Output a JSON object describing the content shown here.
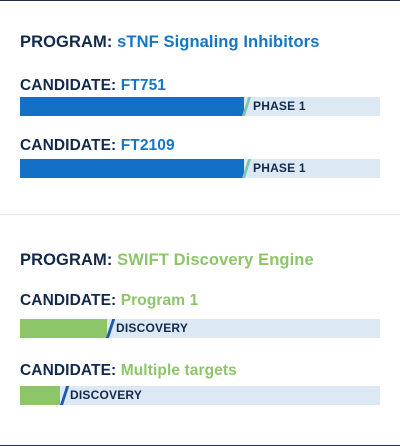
{
  "label_program": "PROGRAM:",
  "label_candidate": "CANDIDATE:",
  "programs": [
    {
      "name": "sTNF Signaling Inhibitors",
      "candidates": [
        {
          "name": "FT751",
          "stage": "PHASE 1"
        },
        {
          "name": "FT2109",
          "stage": "PHASE 1"
        }
      ]
    },
    {
      "name": "SWIFT Discovery Engine",
      "candidates": [
        {
          "name": "Program 1",
          "stage": "DISCOVERY"
        },
        {
          "name": "Multiple targets",
          "stage": "DISCOVERY"
        }
      ]
    }
  ],
  "colors": {
    "navy": "#13294b",
    "blue": "#1676c6",
    "green": "#8cc668",
    "track": "#dce9f5"
  }
}
